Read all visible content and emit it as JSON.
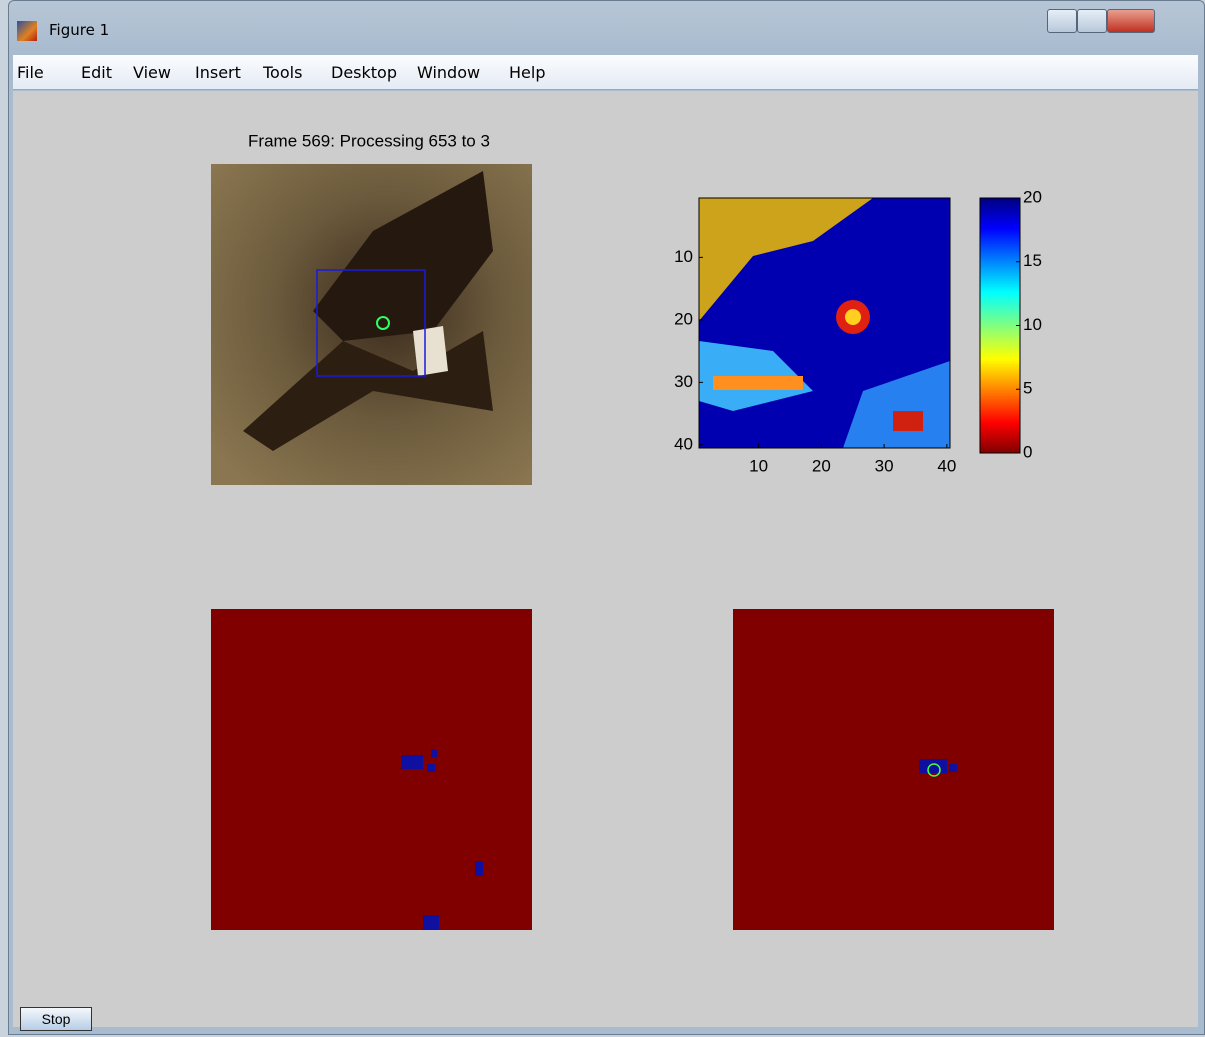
{
  "window": {
    "title": "Figure 1"
  },
  "menu": [
    "File",
    "Edit",
    "View",
    "Insert",
    "Tools",
    "Desktop",
    "Window",
    "Help"
  ],
  "subplot_title": "Frame 569: Processing 653 to 3",
  "heatmap": {
    "xlim": [
      0.5,
      40.5
    ],
    "ylim": [
      0.5,
      40.5
    ],
    "xticks": [
      10,
      20,
      30,
      40
    ],
    "yticks": [
      10,
      20,
      30,
      40
    ]
  },
  "colorbar": {
    "lim": [
      0,
      20
    ],
    "ticks": [
      0,
      5,
      10,
      15,
      20
    ]
  },
  "stop_button": "Stop"
}
